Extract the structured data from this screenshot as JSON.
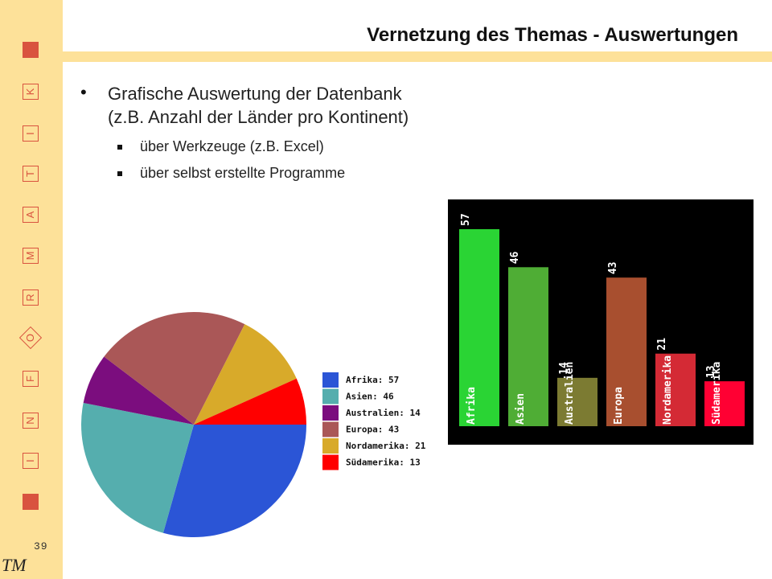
{
  "slide": {
    "title": "Vernetzung des Themas - Auswertungen",
    "bullet_line1": "Grafische Auswertung der Datenbank",
    "bullet_line2": "(z.B. Anzahl der Länder pro Kontinent)",
    "sub1": "über Werkzeuge (z.B. Excel)",
    "sub2": "über selbst erstellte Programme",
    "page_number": "39",
    "logo": "TM"
  },
  "sidebar": {
    "letters": [
      "K",
      "I",
      "T",
      "A",
      "M",
      "R",
      "O",
      "F",
      "N",
      "I"
    ]
  },
  "chart_data": [
    {
      "type": "pie",
      "categories": [
        "Afrika",
        "Asien",
        "Australien",
        "Europa",
        "Nordamerika",
        "Südamerika"
      ],
      "values": [
        57,
        46,
        14,
        43,
        21,
        13
      ],
      "legend": [
        "Afrika: 57",
        "Asien: 46",
        "Australien: 14",
        "Europa: 43",
        "Nordamerika: 21",
        "Südamerika: 13"
      ],
      "colors": [
        "#2b55d6",
        "#55aeae",
        "#7b0d7e",
        "#aa5757",
        "#d8aa2a",
        "#ff0000"
      ],
      "legend_position": "right"
    },
    {
      "type": "bar",
      "categories": [
        "Afrika",
        "Asien",
        "Australien",
        "Europa",
        "Nordamerika",
        "Südamerika"
      ],
      "values": [
        57,
        46,
        14,
        43,
        21,
        13
      ],
      "colors": [
        "#2ad434",
        "#4fad35",
        "#7c7b32",
        "#a84f2f",
        "#d42a35",
        "#ff0033"
      ],
      "background": "#000000"
    }
  ]
}
